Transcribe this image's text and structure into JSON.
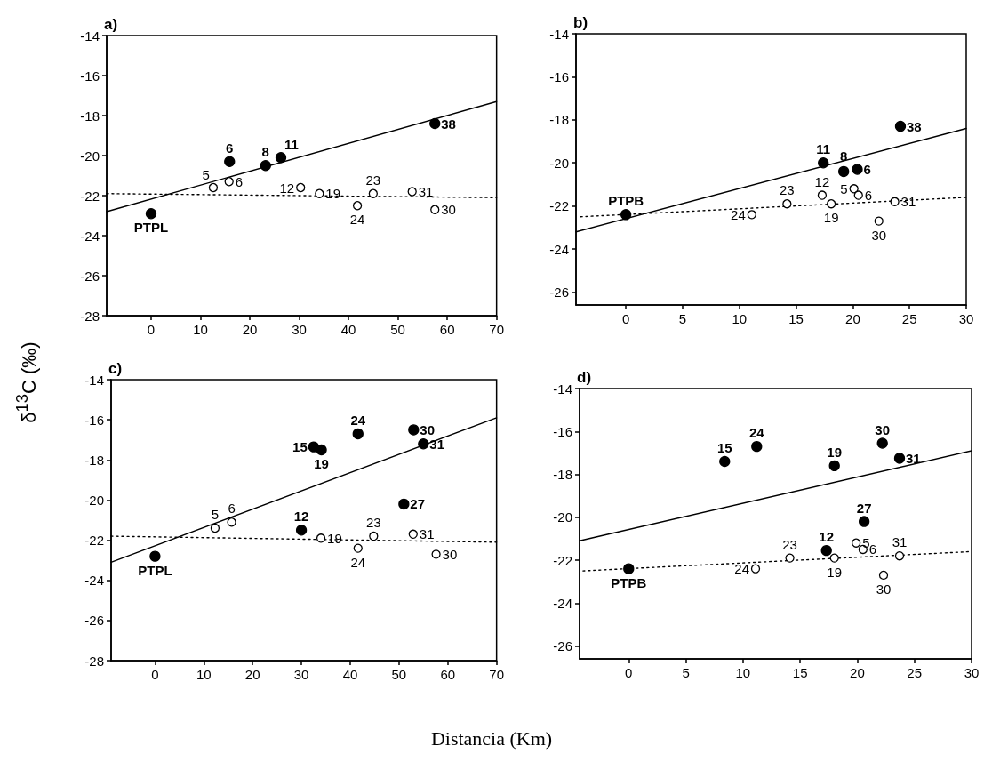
{
  "chart_data": [
    {
      "type": "scatter",
      "title": "a)",
      "ylabel": "δ$^{13}$C (‰)",
      "xlim": [
        -9,
        70
      ],
      "ylim": [
        -28,
        -14
      ],
      "xticks": [
        0,
        10,
        20,
        30,
        40,
        50,
        60,
        70
      ],
      "yticks": [
        -28,
        -26,
        -24,
        -22,
        -20,
        -18,
        -16,
        -14
      ],
      "grid": false,
      "series": [
        {
          "type": "scatter",
          "color": "#000000",
          "marker": "circle",
          "x": [
            0,
            15.9,
            23.2,
            26.3,
            57.5
          ],
          "values": [
            -22.9,
            -20.3,
            -20.5,
            -20.1,
            -18.4
          ]
        },
        {
          "type": "scatter",
          "color": "#ffffff",
          "marker": "circle",
          "x": [
            12.6,
            15.8,
            30.3,
            34.1,
            41.8,
            45,
            52.9,
            57.5
          ],
          "values": [
            -21.6,
            -21.3,
            -21.6,
            -21.9,
            -22.5,
            -21.9,
            -21.8,
            -22.7
          ]
        },
        {
          "type": "line",
          "color": "#000000",
          "marker": "none",
          "line_style": "solid",
          "x": [
            -9,
            70
          ],
          "values": [
            -22.8,
            -17.3
          ]
        },
        {
          "type": "line",
          "color": "#000000",
          "marker": "none",
          "line_style": "dotted",
          "x": [
            -9,
            70
          ],
          "values": [
            -21.9,
            -22.1
          ]
        }
      ],
      "annotations": [
        {
          "text": "PTPL",
          "x": 0,
          "y": -22.9
        },
        {
          "text": "6",
          "x": 15.9,
          "y": -20.3
        },
        {
          "text": "8",
          "x": 23.2,
          "y": -20.5
        },
        {
          "text": "11",
          "x": 26.3,
          "y": -20.1
        },
        {
          "text": "38",
          "x": 57.5,
          "y": -18.4
        },
        {
          "text": "5",
          "x": 12.6,
          "y": -21.6
        },
        {
          "text": "6",
          "x": 15.8,
          "y": -21.3
        },
        {
          "text": "12",
          "x": 30.3,
          "y": -21.6
        },
        {
          "text": "19",
          "x": 34.1,
          "y": -21.9
        },
        {
          "text": "24",
          "x": 41.8,
          "y": -22.5
        },
        {
          "text": "23",
          "x": 45,
          "y": -21.9
        },
        {
          "text": "31",
          "x": 52.9,
          "y": -21.8
        },
        {
          "text": "30",
          "x": 57.5,
          "y": -22.7
        }
      ]
    },
    {
      "type": "scatter",
      "title": "b)",
      "xlim": [
        -4.4,
        30
      ],
      "ylim": [
        -26.6,
        -14
      ],
      "xticks": [
        0,
        5,
        10,
        15,
        20,
        25,
        30
      ],
      "yticks": [
        -26,
        -24,
        -22,
        -20,
        -18,
        -16,
        -14
      ],
      "grid": false,
      "series": [
        {
          "type": "scatter",
          "color": "#000000",
          "marker": "circle",
          "x": [
            0,
            17.4,
            19.2,
            20.4,
            24.2
          ],
          "values": [
            -22.4,
            -20,
            -20.4,
            -20.3,
            -18.3
          ]
        },
        {
          "type": "scatter",
          "color": "#ffffff",
          "marker": "circle",
          "x": [
            11.1,
            14.2,
            17.3,
            18.1,
            20.1,
            20.5,
            22.3,
            23.7
          ],
          "values": [
            -22.4,
            -21.9,
            -21.5,
            -21.9,
            -21.2,
            -21.5,
            -22.7,
            -21.8
          ]
        },
        {
          "type": "line",
          "color": "#000000",
          "marker": "none",
          "line_style": "solid",
          "x": [
            -4.4,
            30
          ],
          "values": [
            -23.2,
            -18.4
          ]
        },
        {
          "type": "line",
          "color": "#000000",
          "marker": "none",
          "line_style": "dotted",
          "x": [
            -4,
            30
          ],
          "values": [
            -22.5,
            -21.6
          ]
        }
      ],
      "annotations": [
        {
          "text": "PTPB",
          "x": 0,
          "y": -22.4
        },
        {
          "text": "11",
          "x": 17.4,
          "y": -20
        },
        {
          "text": "8",
          "x": 19.2,
          "y": -20.4
        },
        {
          "text": "6",
          "x": 20.4,
          "y": -20.3
        },
        {
          "text": "38",
          "x": 24.2,
          "y": -18.3
        },
        {
          "text": "24",
          "x": 11.1,
          "y": -22.4
        },
        {
          "text": "23",
          "x": 14.2,
          "y": -21.9
        },
        {
          "text": "12",
          "x": 17.3,
          "y": -21.5
        },
        {
          "text": "19",
          "x": 18.1,
          "y": -21.9
        },
        {
          "text": "5",
          "x": 20.1,
          "y": -21.2
        },
        {
          "text": "6",
          "x": 20.5,
          "y": -21.5
        },
        {
          "text": "30",
          "x": 22.3,
          "y": -22.7
        },
        {
          "text": "31",
          "x": 23.7,
          "y": -21.8
        }
      ]
    },
    {
      "type": "scatter",
      "title": "c)",
      "xlabel": "Distancia (Km)",
      "xlim": [
        -9,
        70
      ],
      "ylim": [
        -28,
        -14
      ],
      "xticks": [
        0,
        10,
        20,
        30,
        40,
        50,
        60,
        70
      ],
      "yticks": [
        -28,
        -26,
        -24,
        -22,
        -20,
        -18,
        -16,
        -14
      ],
      "grid": false,
      "series": [
        {
          "type": "scatter",
          "color": "#000000",
          "marker": "circle",
          "x": [
            0,
            32.5,
            34.1,
            41.6,
            53,
            55,
            51,
            30
          ],
          "values": [
            -22.8,
            -17.35,
            -17.5,
            -16.7,
            -16.5,
            -17.2,
            -20.2,
            -21.5
          ]
        },
        {
          "type": "scatter",
          "color": "#ffffff",
          "marker": "circle",
          "x": [
            12.3,
            15.7,
            34,
            41.6,
            44.8,
            52.9,
            57.6
          ],
          "values": [
            -21.4,
            -21.1,
            -21.9,
            -22.4,
            -21.8,
            -21.7,
            -22.7
          ]
        },
        {
          "type": "line",
          "color": "#000000",
          "marker": "none",
          "line_style": "solid",
          "x": [
            -9,
            70
          ],
          "values": [
            -23.1,
            -15.9
          ]
        },
        {
          "type": "line",
          "color": "#000000",
          "marker": "none",
          "line_style": "dotted",
          "x": [
            -9,
            70
          ],
          "values": [
            -21.8,
            -22.1
          ]
        }
      ],
      "annotations": [
        {
          "text": "PTPL",
          "x": 0,
          "y": -22.8
        },
        {
          "text": "15",
          "x": 32.5,
          "y": -17.35
        },
        {
          "text": "19",
          "x": 34.1,
          "y": -17.5
        },
        {
          "text": "24",
          "x": 41.6,
          "y": -16.7
        },
        {
          "text": "30",
          "x": 53,
          "y": -16.5
        },
        {
          "text": "31",
          "x": 55,
          "y": -17.2
        },
        {
          "text": "27",
          "x": 51,
          "y": -20.2
        },
        {
          "text": "12",
          "x": 30,
          "y": -21.5
        },
        {
          "text": "5",
          "x": 12.3,
          "y": -21.4
        },
        {
          "text": "6",
          "x": 15.7,
          "y": -21.1
        },
        {
          "text": "19",
          "x": 34,
          "y": -21.9
        },
        {
          "text": "24",
          "x": 41.6,
          "y": -22.4
        },
        {
          "text": "23",
          "x": 44.8,
          "y": -21.8
        },
        {
          "text": "31",
          "x": 52.9,
          "y": -21.7
        },
        {
          "text": "30",
          "x": 57.6,
          "y": -22.7
        }
      ]
    },
    {
      "type": "scatter",
      "title": "d)",
      "xlim": [
        -4.3,
        30
      ],
      "ylim": [
        -26.6,
        -14
      ],
      "xticks": [
        0,
        5,
        10,
        15,
        20,
        25,
        30
      ],
      "yticks": [
        -26,
        -24,
        -22,
        -20,
        -18,
        -16,
        -14
      ],
      "grid": false,
      "series": [
        {
          "type": "scatter",
          "color": "#000000",
          "marker": "circle",
          "x": [
            0,
            8.4,
            11.2,
            18,
            22.2,
            23.7,
            20.6,
            17.3
          ],
          "values": [
            -22.4,
            -17.4,
            -16.7,
            -17.6,
            -16.55,
            -17.25,
            -20.2,
            -21.55
          ]
        },
        {
          "type": "scatter",
          "color": "#ffffff",
          "marker": "circle",
          "x": [
            11.1,
            14.1,
            18,
            19.9,
            20.5,
            22.3,
            23.7
          ],
          "values": [
            -22.4,
            -21.9,
            -21.9,
            -21.2,
            -21.5,
            -22.7,
            -21.8
          ]
        },
        {
          "type": "line",
          "color": "#000000",
          "marker": "none",
          "line_style": "solid",
          "x": [
            -4.3,
            30
          ],
          "values": [
            -21.1,
            -16.9
          ]
        },
        {
          "type": "line",
          "color": "#000000",
          "marker": "none",
          "line_style": "dotted",
          "x": [
            -4,
            30
          ],
          "values": [
            -22.5,
            -21.6
          ]
        }
      ],
      "annotations": [
        {
          "text": "PTPB",
          "x": 0,
          "y": -22.4
        },
        {
          "text": "15",
          "x": 8.4,
          "y": -17.4
        },
        {
          "text": "24",
          "x": 11.2,
          "y": -16.7
        },
        {
          "text": "19",
          "x": 18,
          "y": -17.6
        },
        {
          "text": "30",
          "x": 22.2,
          "y": -16.55
        },
        {
          "text": "31",
          "x": 23.7,
          "y": -17.25
        },
        {
          "text": "27",
          "x": 20.6,
          "y": -20.2
        },
        {
          "text": "12",
          "x": 17.3,
          "y": -21.55
        },
        {
          "text": "24",
          "x": 11.1,
          "y": -22.4
        },
        {
          "text": "23",
          "x": 14.1,
          "y": -21.9
        },
        {
          "text": "19",
          "x": 18,
          "y": -21.9
        },
        {
          "text": "5",
          "x": 19.9,
          "y": -21.2
        },
        {
          "text": "6",
          "x": 20.5,
          "y": -21.5
        },
        {
          "text": "30",
          "x": 22.3,
          "y": -22.7
        },
        {
          "text": "31",
          "x": 23.7,
          "y": -21.8
        }
      ]
    }
  ]
}
